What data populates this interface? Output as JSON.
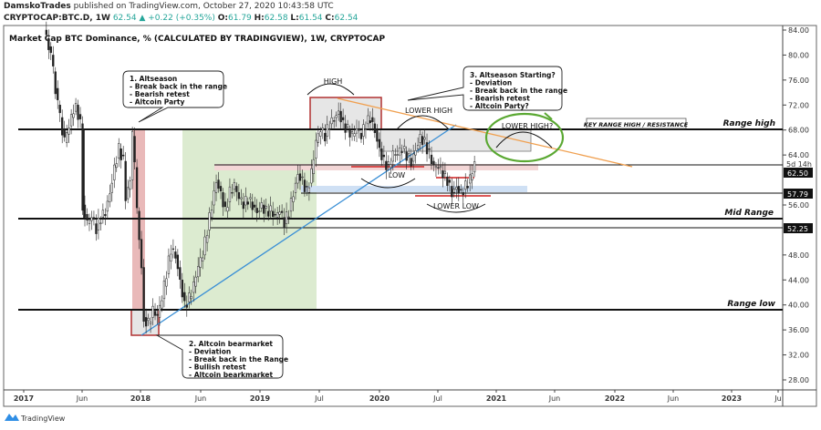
{
  "header": {
    "publisher": "DamskoTrades",
    "published_text": "published on TradingView.com, October 27, 2020 10:43:58 UTC",
    "symbol": "CRYPTOCAP:BTC.D, 1W",
    "last": "62.54",
    "change": "+0.22 (+0.35%)",
    "o_label": "O:",
    "o": "61.79",
    "h_label": "H:",
    "h": "62.58",
    "l_label": "L:",
    "l": "61.54",
    "c_label": "C:",
    "c": "62.54"
  },
  "chart_title": "Market Cap BTC Dominance, % (CALCULATED BY TRADINGVIEW), 1W, CRYPTOCAP",
  "footer": {
    "brand": "TradingView"
  },
  "annotations": {
    "callout1": [
      "1. Altseason",
      "- Break back in the range",
      "- Bearish retest",
      "- Altcoin Party"
    ],
    "callout2": [
      "2. Altcoin bearmarket",
      "- Deviation",
      "- Break back in the Range",
      "- Bullish retest",
      "- Altcoin bearkmarket"
    ],
    "callout3": [
      "3. Altseason Starting?",
      "- Deviation",
      "- Break back in the range",
      "- Bearish retest",
      "- Altcoin Party?"
    ],
    "high": "HIGH",
    "lower_high": "LOWER HIGH",
    "low": "LOW",
    "lower_low": "LOWER LOW",
    "lower_high_q": "LOWER HIGH?",
    "key_range": "KEY RANGE HIGH / RESISTANCE",
    "range_high": "Range high",
    "mid_range": "Mid Range",
    "range_low": "Range low"
  },
  "price_badges": {
    "countdown": "5d 14h",
    "current": "62.50",
    "level1": "57.79",
    "level2": "52.25"
  },
  "colors": {
    "up": "#26a69a",
    "candle": "#222222",
    "trend_blue": "#3a8fd6",
    "trend_orange": "#f0a050",
    "circle_green": "#5aa832",
    "box_red": "#b03030",
    "zone_green": "#dcebd0",
    "zone_red": "#e4a8a8"
  },
  "chart_data": {
    "type": "candlestick",
    "title": "Market Cap BTC Dominance, % (CALCULATED BY TRADINGVIEW), 1W, CRYPTOCAP",
    "xlabel": "",
    "ylabel": "",
    "ylim": [
      26,
      85
    ],
    "xlim": [
      "2016-12-20",
      "2023-07-15"
    ],
    "y_ticks": [
      "84.00",
      "80.00",
      "76.00",
      "72.00",
      "68.00",
      "64.00",
      "56.00",
      "48.00",
      "44.00",
      "40.00",
      "36.00",
      "32.00",
      "28.00"
    ],
    "x_ticks": [
      "2017",
      "Jun",
      "2018",
      "Jun",
      "2019",
      "Jul",
      "2020",
      "Jul",
      "2021",
      "Jun",
      "2022",
      "Jun",
      "2023",
      "Ju"
    ],
    "levels": {
      "range_high": 68,
      "current_line": 62.5,
      "support": 57.79,
      "mid_range": 53.8,
      "lower_mid": 52.25,
      "range_low": 39.2
    },
    "closes": [
      [
        "2017-03-05",
        84
      ],
      [
        "2017-03-26",
        80
      ],
      [
        "2017-04-16",
        72
      ],
      [
        "2017-05-07",
        66
      ],
      [
        "2017-05-28",
        70
      ],
      [
        "2017-06-11",
        72
      ],
      [
        "2017-06-25",
        69
      ],
      [
        "2017-07-02",
        56
      ],
      [
        "2017-07-16",
        53
      ],
      [
        "2017-07-30",
        54
      ],
      [
        "2017-08-13",
        52
      ],
      [
        "2017-08-27",
        54
      ],
      [
        "2017-09-10",
        55
      ],
      [
        "2017-09-24",
        58
      ],
      [
        "2017-10-08",
        62
      ],
      [
        "2017-10-22",
        65
      ],
      [
        "2017-11-05",
        63
      ],
      [
        "2017-11-12",
        57
      ],
      [
        "2017-11-26",
        60
      ],
      [
        "2017-12-03",
        67
      ],
      [
        "2017-12-10",
        62
      ],
      [
        "2017-12-17",
        55
      ],
      [
        "2017-12-31",
        46
      ],
      [
        "2018-01-07",
        38
      ],
      [
        "2018-01-21",
        37
      ],
      [
        "2018-02-04",
        39
      ],
      [
        "2018-02-18",
        38
      ],
      [
        "2018-03-04",
        41
      ],
      [
        "2018-03-18",
        45
      ],
      [
        "2018-04-01",
        49
      ],
      [
        "2018-04-15",
        48
      ],
      [
        "2018-04-29",
        44
      ],
      [
        "2018-05-13",
        40
      ],
      [
        "2018-05-27",
        41
      ],
      [
        "2018-06-10",
        43
      ],
      [
        "2018-06-24",
        46
      ],
      [
        "2018-07-08",
        48
      ],
      [
        "2018-07-22",
        52
      ],
      [
        "2018-08-05",
        56
      ],
      [
        "2018-08-19",
        60
      ],
      [
        "2018-09-02",
        58
      ],
      [
        "2018-09-16",
        55
      ],
      [
        "2018-09-30",
        58
      ],
      [
        "2018-10-14",
        59
      ],
      [
        "2018-10-28",
        57
      ],
      [
        "2018-11-11",
        56
      ],
      [
        "2018-11-25",
        57
      ],
      [
        "2018-12-09",
        56
      ],
      [
        "2018-12-23",
        55
      ],
      [
        "2019-01-06",
        56
      ],
      [
        "2019-01-20",
        55
      ],
      [
        "2019-02-03",
        55
      ],
      [
        "2019-02-17",
        54
      ],
      [
        "2019-03-03",
        55
      ],
      [
        "2019-03-17",
        53
      ],
      [
        "2019-03-31",
        55
      ],
      [
        "2019-04-14",
        58
      ],
      [
        "2019-04-28",
        61
      ],
      [
        "2019-05-12",
        60
      ],
      [
        "2019-05-26",
        58
      ],
      [
        "2019-06-09",
        61
      ],
      [
        "2019-06-23",
        66
      ],
      [
        "2019-07-07",
        68
      ],
      [
        "2019-07-21",
        67
      ],
      [
        "2019-08-04",
        69
      ],
      [
        "2019-08-18",
        70
      ],
      [
        "2019-09-01",
        71
      ],
      [
        "2019-09-15",
        69
      ],
      [
        "2019-09-29",
        68
      ],
      [
        "2019-10-13",
        67
      ],
      [
        "2019-10-27",
        68
      ],
      [
        "2019-11-10",
        67
      ],
      [
        "2019-11-24",
        69
      ],
      [
        "2019-12-08",
        70
      ],
      [
        "2019-12-22",
        68
      ],
      [
        "2020-01-05",
        65
      ],
      [
        "2020-01-19",
        63
      ],
      [
        "2020-02-02",
        62
      ],
      [
        "2020-02-16",
        64
      ],
      [
        "2020-03-01",
        64
      ],
      [
        "2020-03-15",
        65
      ],
      [
        "2020-03-29",
        64
      ],
      [
        "2020-04-12",
        63
      ],
      [
        "2020-04-26",
        65
      ],
      [
        "2020-05-10",
        67
      ],
      [
        "2020-05-24",
        66
      ],
      [
        "2020-06-07",
        64
      ],
      [
        "2020-06-21",
        62
      ],
      [
        "2020-07-05",
        62
      ],
      [
        "2020-07-19",
        61
      ],
      [
        "2020-08-02",
        60
      ],
      [
        "2020-08-16",
        58
      ],
      [
        "2020-08-30",
        59
      ],
      [
        "2020-09-13",
        58
      ],
      [
        "2020-09-27",
        59
      ],
      [
        "2020-10-11",
        60
      ],
      [
        "2020-10-25",
        62.54
      ]
    ]
  }
}
